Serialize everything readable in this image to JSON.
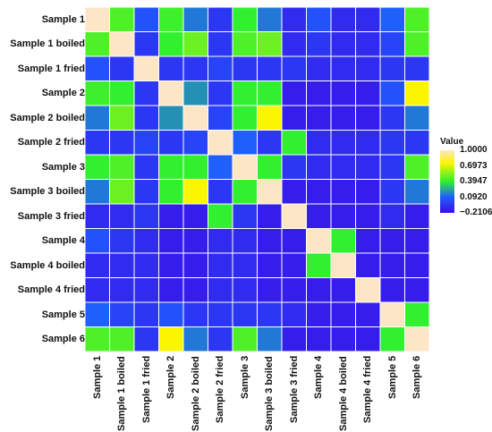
{
  "chart_data": {
    "type": "heatmap",
    "rows": [
      "Sample 1",
      "Sample 1 boiled",
      "Sample 1 fried",
      "Sample 2",
      "Sample 2 boiled",
      "Sample 2 fried",
      "Sample 3",
      "Sample 3 boiled",
      "Sample 3 fried",
      "Sample 4",
      "Sample 4 boiled",
      "Sample 4 fried",
      "Sample 5",
      "Sample 6"
    ],
    "columns": [
      "Sample 1",
      "Sample 1 boiled",
      "Sample 1 fried",
      "Sample 2",
      "Sample 2 boiled",
      "Sample 2 fried",
      "Sample 3",
      "Sample 3 boiled",
      "Sample 3 fried",
      "Sample 4",
      "Sample 4 boiled",
      "Sample 4 fried",
      "Sample 5",
      "Sample 6"
    ],
    "values": [
      [
        1.0,
        0.45,
        0.05,
        0.42,
        0.15,
        -0.05,
        0.4,
        0.15,
        -0.1,
        0.05,
        -0.1,
        -0.1,
        0.1,
        0.45
      ],
      [
        0.45,
        1.0,
        -0.05,
        0.4,
        0.5,
        -0.05,
        0.45,
        0.5,
        -0.1,
        -0.05,
        -0.1,
        -0.1,
        0.0,
        0.45
      ],
      [
        0.05,
        -0.05,
        1.0,
        -0.05,
        -0.05,
        0.0,
        -0.05,
        -0.05,
        -0.05,
        -0.1,
        -0.1,
        -0.1,
        -0.05,
        -0.05
      ],
      [
        0.42,
        0.4,
        -0.05,
        1.0,
        0.2,
        -0.05,
        0.4,
        0.4,
        -0.15,
        -0.15,
        -0.15,
        -0.15,
        0.05,
        0.75
      ],
      [
        0.15,
        0.5,
        -0.05,
        0.2,
        1.0,
        0.0,
        0.4,
        0.75,
        -0.15,
        -0.15,
        -0.15,
        -0.15,
        -0.05,
        0.15
      ],
      [
        -0.05,
        -0.05,
        0.0,
        -0.05,
        0.0,
        1.0,
        0.1,
        -0.05,
        0.4,
        -0.1,
        -0.1,
        -0.1,
        -0.05,
        -0.05
      ],
      [
        0.4,
        0.45,
        -0.05,
        0.4,
        0.4,
        0.1,
        1.0,
        0.4,
        -0.05,
        -0.1,
        -0.1,
        -0.1,
        -0.05,
        0.45
      ],
      [
        0.15,
        0.5,
        -0.05,
        0.4,
        0.75,
        -0.05,
        0.4,
        1.0,
        -0.15,
        -0.15,
        -0.15,
        -0.15,
        -0.05,
        0.15
      ],
      [
        -0.1,
        -0.1,
        -0.05,
        -0.15,
        -0.15,
        0.4,
        -0.05,
        -0.15,
        1.0,
        -0.15,
        -0.15,
        -0.15,
        -0.1,
        -0.15
      ],
      [
        0.05,
        -0.05,
        -0.1,
        -0.15,
        -0.15,
        -0.1,
        -0.1,
        -0.15,
        -0.15,
        1.0,
        0.4,
        -0.15,
        -0.15,
        -0.15
      ],
      [
        -0.1,
        -0.1,
        -0.1,
        -0.15,
        -0.15,
        -0.1,
        -0.1,
        -0.15,
        -0.15,
        0.4,
        1.0,
        -0.15,
        -0.15,
        -0.15
      ],
      [
        -0.1,
        -0.1,
        -0.1,
        -0.15,
        -0.15,
        -0.1,
        -0.1,
        -0.15,
        -0.15,
        -0.15,
        -0.15,
        1.0,
        -0.15,
        -0.15
      ],
      [
        0.1,
        0.0,
        -0.05,
        0.05,
        -0.05,
        -0.05,
        -0.05,
        -0.05,
        -0.1,
        -0.15,
        -0.15,
        -0.15,
        1.0,
        0.4
      ],
      [
        0.45,
        0.45,
        -0.05,
        0.75,
        0.15,
        -0.05,
        0.45,
        0.15,
        -0.15,
        -0.15,
        -0.15,
        -0.15,
        0.4,
        1.0
      ]
    ],
    "legend": {
      "title": "Value",
      "ticks": [
        "1.0000",
        "0.6973",
        "0.3947",
        "0.0920",
        "−0.2106"
      ],
      "tick_values": [
        1.0,
        0.6973,
        0.3947,
        0.092,
        -0.2106
      ],
      "range": [
        -0.2106,
        1.0
      ],
      "placement": "right"
    },
    "colors": {
      "low": "#3a0ee6",
      "mid_low": "#1f5cff",
      "mid_high": "#2ef02e",
      "high_mid": "#fff500",
      "high": "#fde6c6",
      "grid_line": "#ffffff"
    }
  }
}
